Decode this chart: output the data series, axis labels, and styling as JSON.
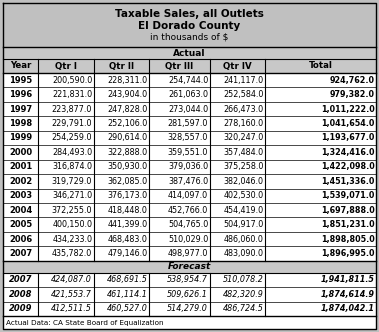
{
  "title_line1": "Taxable Sales, all Outlets",
  "title_line2": "El Dorado County",
  "title_line3": "in thousands of $",
  "col_headers": [
    "Year",
    "Qtr I",
    "Qtr II",
    "Qtr III",
    "Qtr IV",
    "Total"
  ],
  "actual_rows": [
    [
      "1995",
      "200,590.0",
      "228,311.0",
      "254,744.0",
      "241,117.0",
      "924,762.0"
    ],
    [
      "1996",
      "221,831.0",
      "243,904.0",
      "261,063.0",
      "252,584.0",
      "979,382.0"
    ],
    [
      "1997",
      "223,877.0",
      "247,828.0",
      "273,044.0",
      "266,473.0",
      "1,011,222.0"
    ],
    [
      "1998",
      "229,791.0",
      "252,106.0",
      "281,597.0",
      "278,160.0",
      "1,041,654.0"
    ],
    [
      "1999",
      "254,259.0",
      "290,614.0",
      "328,557.0",
      "320,247.0",
      "1,193,677.0"
    ],
    [
      "2000",
      "284,493.0",
      "322,888.0",
      "359,551.0",
      "357,484.0",
      "1,324,416.0"
    ],
    [
      "2001",
      "316,874.0",
      "350,930.0",
      "379,036.0",
      "375,258.0",
      "1,422,098.0"
    ],
    [
      "2002",
      "319,729.0",
      "362,085.0",
      "387,476.0",
      "382,046.0",
      "1,451,336.0"
    ],
    [
      "2003",
      "346,271.0",
      "376,173.0",
      "414,097.0",
      "402,530.0",
      "1,539,071.0"
    ],
    [
      "2004",
      "372,255.0",
      "418,448.0",
      "452,766.0",
      "454,419.0",
      "1,697,888.0"
    ],
    [
      "2005",
      "400,150.0",
      "441,399.0",
      "504,765.0",
      "504,917.0",
      "1,851,231.0"
    ],
    [
      "2006",
      "434,233.0",
      "468,483.0",
      "510,029.0",
      "486,060.0",
      "1,898,805.0"
    ],
    [
      "2007",
      "435,782.0",
      "479,146.0",
      "498,977.0",
      "483,090.0",
      "1,896,995.0"
    ]
  ],
  "forecast_rows": [
    [
      "2007",
      "424,087.0",
      "468,691.5",
      "538,954.7",
      "510,078.2",
      "1,941,811.5"
    ],
    [
      "2008",
      "421,553.7",
      "461,114.1",
      "509,626.1",
      "482,320.9",
      "1,874,614.9"
    ],
    [
      "2009",
      "412,511.5",
      "460,527.0",
      "514,279.0",
      "486,724.5",
      "1,874,042.1"
    ]
  ],
  "footer": "Actual Data: CA State Board of Equalization",
  "bg_color": "#c0c0c0",
  "title_bg": "#c0c0c0",
  "banner_bg": "#c8c8c8",
  "row_bg": "#ffffff"
}
